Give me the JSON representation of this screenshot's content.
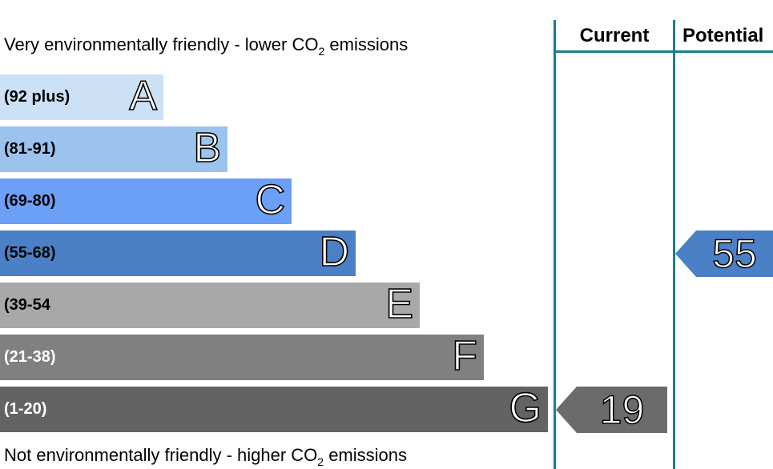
{
  "chart_data": {
    "type": "bar",
    "title": "",
    "top_caption": {
      "pre": "Very environmentally friendly - lower CO",
      "sub": "2",
      "post": " emissions"
    },
    "bottom_caption": {
      "pre": "Not environmentally friendly - higher CO",
      "sub": "2",
      "post": " emissions"
    },
    "bands": [
      {
        "letter": "A",
        "range": "(92 plus)",
        "color": "#cce0f6",
        "text_color": "#000000"
      },
      {
        "letter": "B",
        "range": "(81-91)",
        "color": "#9cc3ee",
        "text_color": "#000000"
      },
      {
        "letter": "C",
        "range": "(69-80)",
        "color": "#6c9ff6",
        "text_color": "#000000"
      },
      {
        "letter": "D",
        "range": "(55-68)",
        "color": "#4b80c6",
        "text_color": "#000000"
      },
      {
        "letter": "E",
        "range": "(39-54",
        "color": "#a8a8a8",
        "text_color": "#000000"
      },
      {
        "letter": "F",
        "range": "(21-38)",
        "color": "#808080",
        "text_color": "#ffffff"
      },
      {
        "letter": "G",
        "range": "(1-20)",
        "color": "#636363",
        "text_color": "#ffffff"
      }
    ],
    "columns": [
      "Current",
      "Potential"
    ],
    "ratings": [
      {
        "column": "Current",
        "value": 19,
        "band": "G",
        "color": "#6b6b6b"
      },
      {
        "column": "Potential",
        "value": 55,
        "band": "D",
        "color": "#4b80c6"
      }
    ],
    "accent_color": "#1a7f8c"
  }
}
